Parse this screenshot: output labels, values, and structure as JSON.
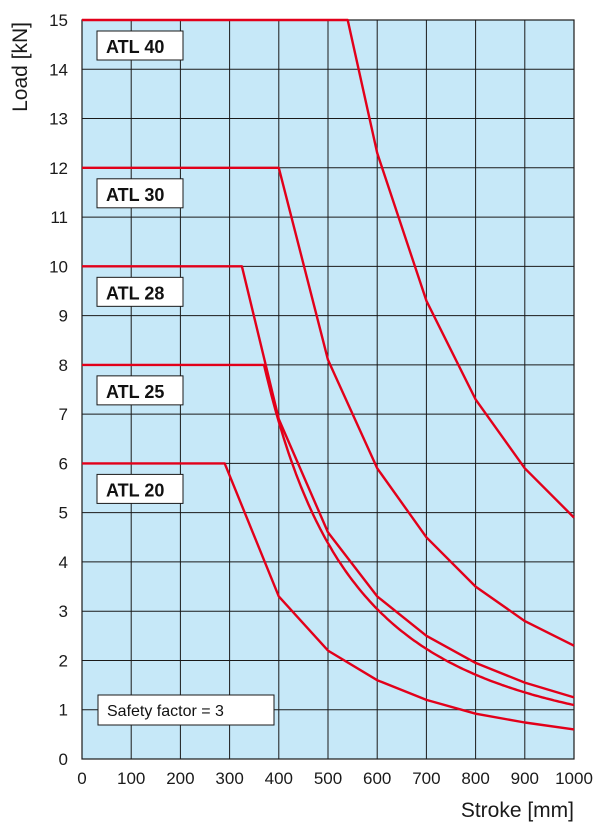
{
  "chart_data": {
    "type": "line",
    "xlabel": "Stroke [mm]",
    "ylabel": "Load [kN]",
    "xlim": [
      0,
      1000
    ],
    "ylim": [
      0,
      15
    ],
    "xticks": [
      0,
      100,
      200,
      300,
      400,
      500,
      600,
      700,
      800,
      900,
      1000
    ],
    "yticks": [
      0,
      1,
      2,
      3,
      4,
      5,
      6,
      7,
      8,
      9,
      10,
      11,
      12,
      13,
      14,
      15
    ],
    "grid": true,
    "colors": {
      "plot_bg": "#c6e8f8",
      "grid": "#1a1a1a",
      "curve": "#e2001a",
      "label_bg": "#ffffff"
    },
    "annotation": "Safety factor = 3",
    "series": [
      {
        "name": "ATL 40",
        "max_load": 15,
        "transition_stroke": 540,
        "x": [
          0,
          540,
          600,
          700,
          800,
          900,
          1000
        ],
        "y": [
          15,
          15,
          12.3,
          9.3,
          7.3,
          5.9,
          4.9
        ]
      },
      {
        "name": "ATL 30",
        "max_load": 12,
        "transition_stroke": 400,
        "x": [
          0,
          400,
          500,
          600,
          700,
          800,
          900,
          1000
        ],
        "y": [
          12,
          12,
          8.1,
          5.9,
          4.5,
          3.5,
          2.8,
          2.3
        ]
      },
      {
        "name": "ATL 28",
        "max_load": 10,
        "transition_stroke": 325,
        "x": [
          0,
          325,
          400,
          500,
          600,
          700,
          800,
          900,
          1000
        ],
        "y": [
          10,
          10,
          6.9,
          4.6,
          3.3,
          2.5,
          1.95,
          1.55,
          1.25
        ]
      },
      {
        "name": "ATL 25",
        "max_load": 8,
        "transition_stroke": 370,
        "x": [
          0,
          370
        ],
        "y": [
          8,
          8
        ]
      },
      {
        "name": "ATL 20",
        "max_load": 6,
        "transition_stroke": 290,
        "x": [
          0,
          290,
          400,
          500,
          600,
          700,
          800,
          900,
          1000
        ],
        "y": [
          6,
          6,
          3.3,
          2.2,
          1.6,
          1.2,
          0.92,
          0.74,
          0.6
        ]
      }
    ]
  }
}
